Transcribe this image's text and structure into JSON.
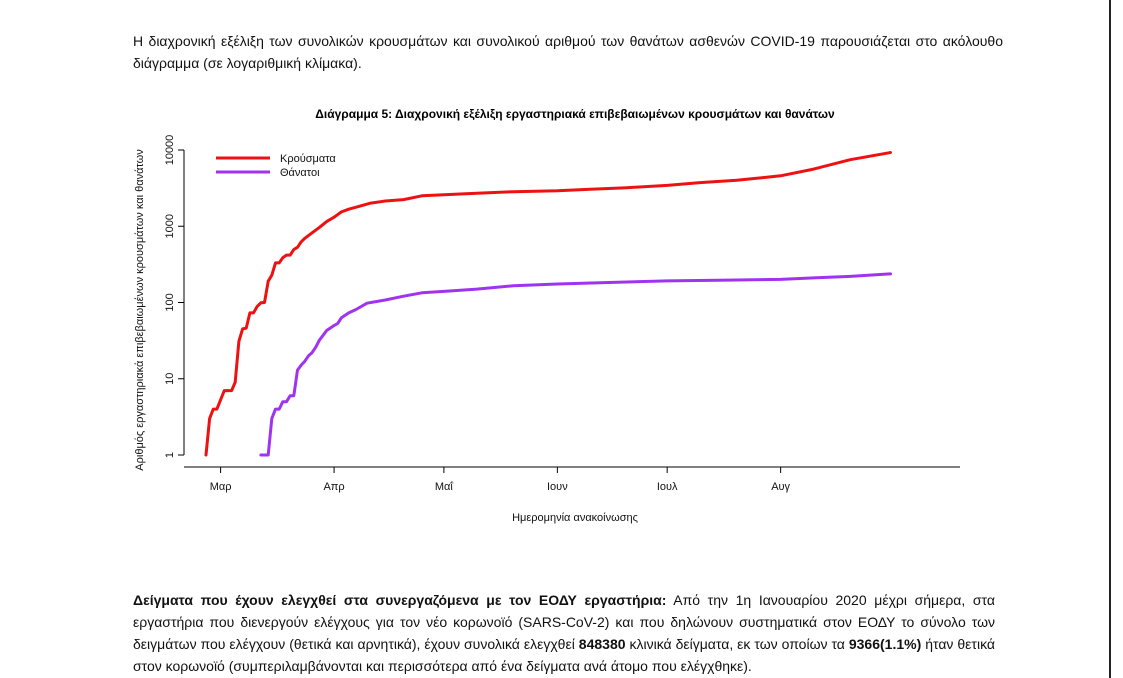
{
  "intro_text": "Η διαχρονική εξέλιξη των συνολικών κρουσμάτων και συνολικού αριθμού των θανάτων ασθενών COVID-19 παρουσιάζεται στο ακόλουθο διάγραμμα (σε λογαριθμική κλίμακα).",
  "chart_data": {
    "type": "line",
    "title": "Διάγραμμα 5: Διαχρονική εξέλιξη εργαστηριακά επιβεβαιωμένων κρουσμάτων και θανάτων",
    "xlabel": "Ημερομηνία ανακοίνωσης",
    "ylabel": "Αριθμός εργαστηριακά επιβεβαιωμένων κρουσμάτων και θανάτων",
    "y_scale": "log",
    "ylim": [
      1,
      10000
    ],
    "y_ticks": [
      1,
      10,
      100,
      1000,
      10000
    ],
    "x_ticks": [
      {
        "label": "Μαρ",
        "date": "2020-03-01"
      },
      {
        "label": "Απρ",
        "date": "2020-04-01"
      },
      {
        "label": "Μαΐ",
        "date": "2020-05-01"
      },
      {
        "label": "Ιουν",
        "date": "2020-06-01"
      },
      {
        "label": "Ιουλ",
        "date": "2020-07-01"
      },
      {
        "label": "Αυγ",
        "date": "2020-08-01"
      }
    ],
    "xlim": [
      "2020-02-20",
      "2020-09-19"
    ],
    "legend_position": "top-left",
    "series": [
      {
        "name": "Κρούσματα",
        "color": "#ee1111",
        "points": [
          [
            "2020-02-26",
            1
          ],
          [
            "2020-02-27",
            3
          ],
          [
            "2020-02-28",
            4
          ],
          [
            "2020-02-29",
            4
          ],
          [
            "2020-03-02",
            7
          ],
          [
            "2020-03-04",
            7
          ],
          [
            "2020-03-05",
            9
          ],
          [
            "2020-03-06",
            31
          ],
          [
            "2020-03-07",
            45
          ],
          [
            "2020-03-08",
            46
          ],
          [
            "2020-03-09",
            73
          ],
          [
            "2020-03-10",
            73
          ],
          [
            "2020-03-11",
            89
          ],
          [
            "2020-03-12",
            99
          ],
          [
            "2020-03-13",
            100
          ],
          [
            "2020-03-14",
            190
          ],
          [
            "2020-03-15",
            228
          ],
          [
            "2020-03-16",
            331
          ],
          [
            "2020-03-17",
            331
          ],
          [
            "2020-03-18",
            387
          ],
          [
            "2020-03-19",
            418
          ],
          [
            "2020-03-20",
            418
          ],
          [
            "2020-03-21",
            495
          ],
          [
            "2020-03-22",
            530
          ],
          [
            "2020-03-23",
            624
          ],
          [
            "2020-03-24",
            695
          ],
          [
            "2020-03-26",
            821
          ],
          [
            "2020-03-28",
            966
          ],
          [
            "2020-03-30",
            1156
          ],
          [
            "2020-04-01",
            1314
          ],
          [
            "2020-04-03",
            1544
          ],
          [
            "2020-04-05",
            1673
          ],
          [
            "2020-04-08",
            1832
          ],
          [
            "2020-04-11",
            2011
          ],
          [
            "2020-04-15",
            2145
          ],
          [
            "2020-04-20",
            2235
          ],
          [
            "2020-04-25",
            2506
          ],
          [
            "2020-05-01",
            2591
          ],
          [
            "2020-05-10",
            2710
          ],
          [
            "2020-05-20",
            2840
          ],
          [
            "2020-06-01",
            2917
          ],
          [
            "2020-06-10",
            3049
          ],
          [
            "2020-06-20",
            3203
          ],
          [
            "2020-07-01",
            3432
          ],
          [
            "2020-07-10",
            3732
          ],
          [
            "2020-07-20",
            4007
          ],
          [
            "2020-08-01",
            4587
          ],
          [
            "2020-08-10",
            5623
          ],
          [
            "2020-08-20",
            7472
          ],
          [
            "2020-08-31",
            9280
          ]
        ]
      },
      {
        "name": "Θάνατοι",
        "color": "#a033f0",
        "points": [
          [
            "2020-03-12",
            1
          ],
          [
            "2020-03-14",
            1
          ],
          [
            "2020-03-15",
            3
          ],
          [
            "2020-03-16",
            4
          ],
          [
            "2020-03-17",
            4
          ],
          [
            "2020-03-18",
            5
          ],
          [
            "2020-03-19",
            5
          ],
          [
            "2020-03-20",
            6
          ],
          [
            "2020-03-21",
            6
          ],
          [
            "2020-03-22",
            13
          ],
          [
            "2020-03-23",
            15
          ],
          [
            "2020-03-24",
            17
          ],
          [
            "2020-03-25",
            20
          ],
          [
            "2020-03-26",
            22
          ],
          [
            "2020-03-27",
            26
          ],
          [
            "2020-03-28",
            32
          ],
          [
            "2020-03-30",
            43
          ],
          [
            "2020-04-01",
            50
          ],
          [
            "2020-04-02",
            53
          ],
          [
            "2020-04-03",
            63
          ],
          [
            "2020-04-05",
            73
          ],
          [
            "2020-04-07",
            81
          ],
          [
            "2020-04-10",
            98
          ],
          [
            "2020-04-15",
            108
          ],
          [
            "2020-04-20",
            121
          ],
          [
            "2020-04-25",
            134
          ],
          [
            "2020-05-01",
            140
          ],
          [
            "2020-05-10",
            150
          ],
          [
            "2020-05-20",
            166
          ],
          [
            "2020-06-01",
            175
          ],
          [
            "2020-06-15",
            183
          ],
          [
            "2020-07-01",
            192
          ],
          [
            "2020-07-15",
            196
          ],
          [
            "2020-08-01",
            201
          ],
          [
            "2020-08-10",
            210
          ],
          [
            "2020-08-20",
            220
          ],
          [
            "2020-08-31",
            237
          ]
        ]
      }
    ]
  },
  "bottom_paragraph": {
    "lead": "Δείγματα που έχουν ελεγχθεί στα συνεργαζόμενα με τον ΕΟΔΥ εργαστήρια:",
    "text1": " Από την 1η Ιανουαρίου 2020 μέχρι σήμερα, στα εργαστήρια που διενεργούν ελέγχους για τον νέο κορωνοϊό (SARS-CoV-2) και που δηλώνουν συστηματικά στον ΕΟΔΥ το σύνολο των δειγμάτων που ελέγχουν (θετικά και αρνητικά), έχουν συνολικά ελεγχθεί ",
    "total_tests": "848380",
    "text2": " κλινικά δείγματα, εκ των οποίων τα ",
    "positive": "9366(1.1%)",
    "text3": " ήταν θετικά στον κορωνοϊό (συμπεριλαμβάνονται και περισσότερα από ένα δείγματα ανά άτομο που ελέγχθηκε)."
  }
}
